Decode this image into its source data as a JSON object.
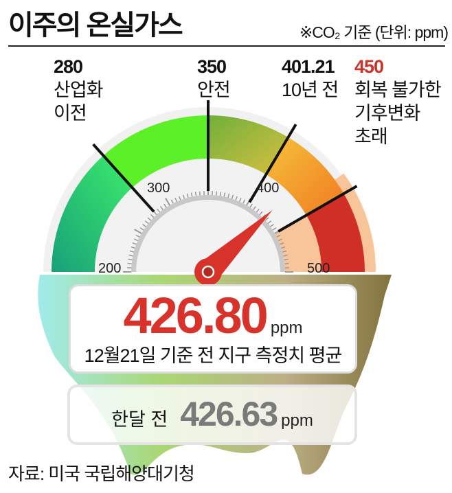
{
  "header": {
    "title": "이주의 온실가스",
    "unit_note": "※CO₂ 기준 (단위: ppm)"
  },
  "gauge": {
    "scale_min": 200,
    "scale_max": 500,
    "tick_labels": [
      "200",
      "300",
      "400",
      "500"
    ],
    "current_value": 426.8,
    "markers": [
      {
        "value": "280",
        "label_lines": [
          "산업화",
          "이전"
        ]
      },
      {
        "value": "350",
        "label_lines": [
          "안전"
        ]
      },
      {
        "value": "401.21",
        "label_lines": [
          "10년 전"
        ]
      },
      {
        "value": "450",
        "label_lines": [
          "회복 불가한",
          "기후변화",
          "초래"
        ],
        "color": "#c8342a"
      }
    ],
    "colors": {
      "teal": "#1aa87f",
      "green": "#5cf028",
      "olive": "#8fb83a",
      "orange": "#f29a2a",
      "red": "#cf2f25",
      "peach": "#f8c49a",
      "needle": "#d8332a"
    }
  },
  "current": {
    "value": "426.80",
    "unit": "ppm",
    "caption": "12월21일 기준 전 지구 측정치 평균"
  },
  "month_ago": {
    "label": "한달 전",
    "value": "426.63",
    "unit": "ppm"
  },
  "source": "자료: 미국 국립해양대기청"
}
